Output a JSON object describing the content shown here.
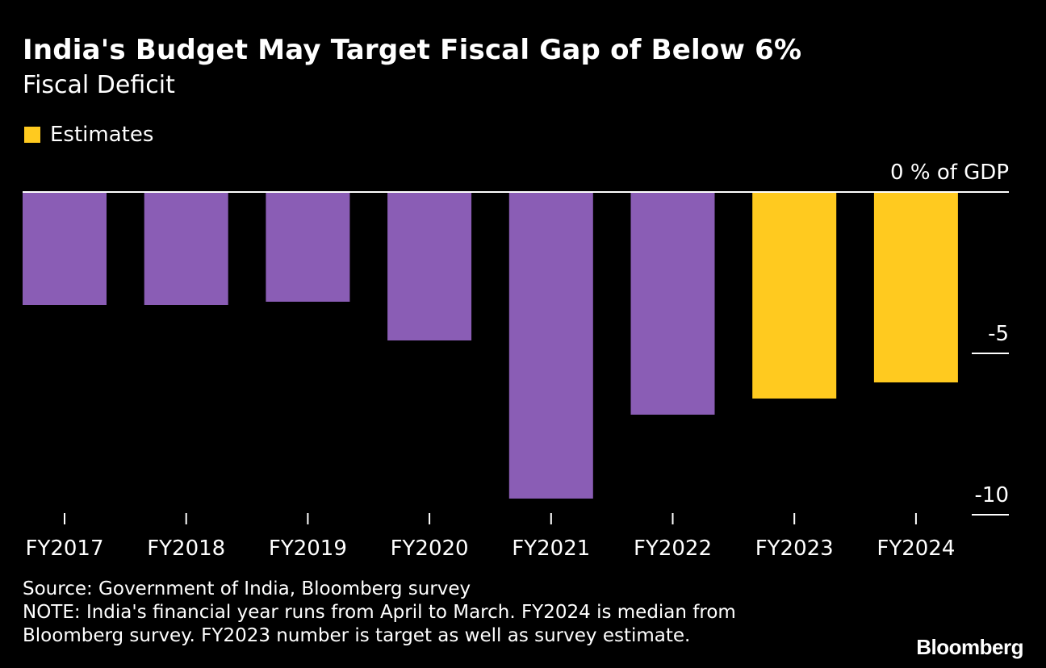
{
  "header": {
    "title": "India's Budget May Target Fiscal Gap of Below 6%",
    "subtitle": "Fiscal Deficit"
  },
  "legend": {
    "label": "Estimates",
    "color": "#FFCA1F"
  },
  "colors": {
    "actual": "#8A5DB5",
    "estimate": "#FFCA1F",
    "background": "#000000",
    "text": "#FFFFFF"
  },
  "chart_data": {
    "type": "bar",
    "title": "India's Budget May Target Fiscal Gap of Below 6%",
    "subtitle": "Fiscal Deficit",
    "ylabel": "",
    "xlabel": "",
    "unit": "% of GDP",
    "ylim": [
      -10,
      0
    ],
    "yticks": [
      {
        "value": 0,
        "label": "0 % of GDP"
      },
      {
        "value": -5,
        "label": "-5"
      },
      {
        "value": -10,
        "label": "-10"
      }
    ],
    "categories": [
      "FY2017",
      "FY2018",
      "FY2019",
      "FY2020",
      "FY2021",
      "FY2022",
      "FY2023",
      "FY2024"
    ],
    "values": [
      -3.5,
      -3.5,
      -3.4,
      -4.6,
      -9.5,
      -6.9,
      -6.4,
      -5.9
    ],
    "estimate": [
      false,
      false,
      false,
      false,
      false,
      false,
      true,
      true
    ],
    "legend": [
      "Estimates"
    ],
    "legend_position": "top-left",
    "grid": false
  },
  "footer": {
    "source": "Source: Government of India, Bloomberg survey",
    "note": "NOTE: India's financial year runs from April to March. FY2024 is median from Bloomberg survey. FY2023 number is target as well as survey estimate.",
    "brand": "Bloomberg"
  }
}
